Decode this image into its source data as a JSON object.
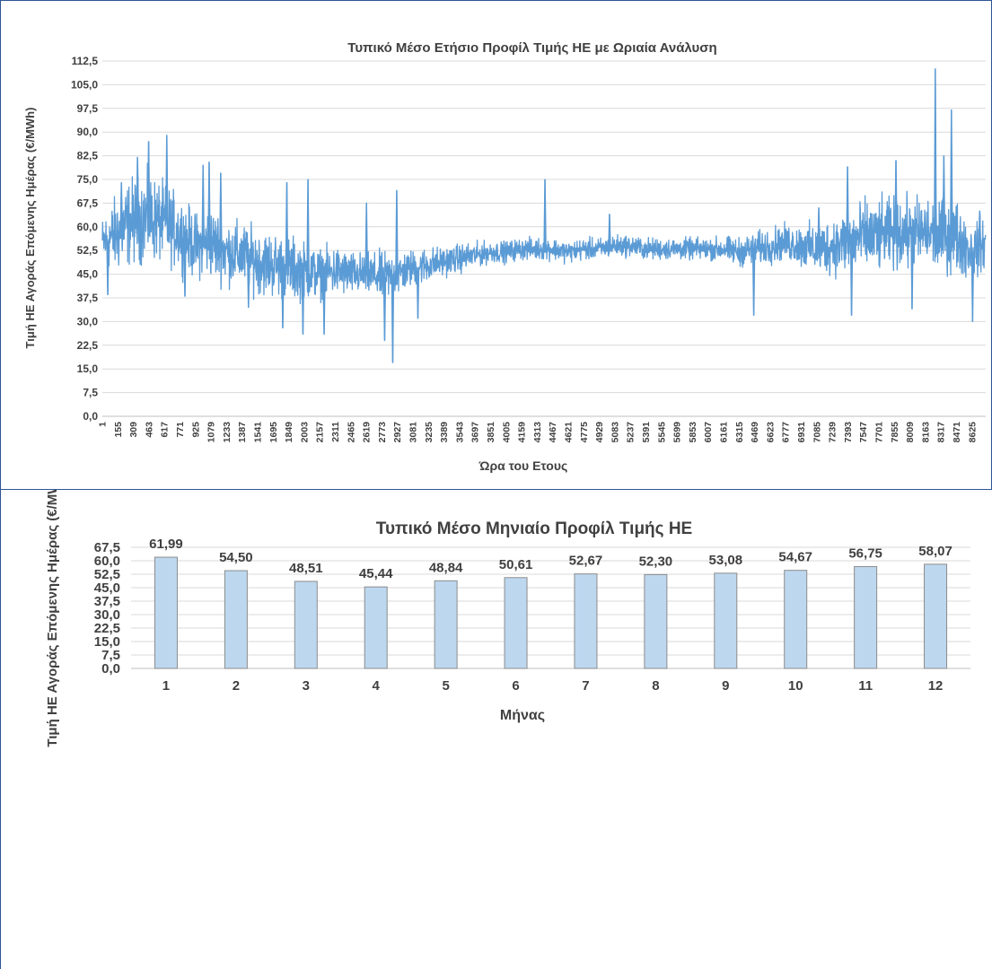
{
  "chart_data": [
    {
      "type": "line",
      "title": "Τυπικό Μέσο Ετήσιο Προφίλ Τιμής ΗΕ με Ωριαία Ανάλυση",
      "xlabel": "Ώρα του Ετους",
      "ylabel": "Τιμή ΗΕ Αγοράς Επόμενης Ημέρας (€/MWh)",
      "ylim": [
        0,
        112.5
      ],
      "ytick_step": 7.5,
      "ytick_labels": [
        "0,0",
        "7,5",
        "15,0",
        "22,5",
        "30,0",
        "37,5",
        "45,0",
        "52,5",
        "60,0",
        "67,5",
        "75,0",
        "82,5",
        "90,0",
        "97,5",
        "105,0",
        "112,5"
      ],
      "xlim": [
        1,
        8760
      ],
      "xtick_labels": [
        "1",
        "155",
        "309",
        "463",
        "617",
        "771",
        "925",
        "1079",
        "1233",
        "1387",
        "1541",
        "1695",
        "1849",
        "2003",
        "2157",
        "2311",
        "2465",
        "2619",
        "2773",
        "2927",
        "3081",
        "3235",
        "3389",
        "3543",
        "3697",
        "3851",
        "4005",
        "4159",
        "4313",
        "4467",
        "4621",
        "4775",
        "4929",
        "5083",
        "5237",
        "5391",
        "5545",
        "5699",
        "5853",
        "6007",
        "6161",
        "6315",
        "6469",
        "6623",
        "6777",
        "6931",
        "7085",
        "7239",
        "7393",
        "7547",
        "7701",
        "7855",
        "8009",
        "8163",
        "8317",
        "8471",
        "8625"
      ],
      "grid": true,
      "color": "#5b9bd5",
      "envelope": {
        "hour": [
          1,
          150,
          300,
          460,
          620,
          770,
          925,
          1080,
          1230,
          1390,
          1540,
          1700,
          1850,
          2000,
          2160,
          2310,
          2470,
          2620,
          2780,
          2930,
          3080,
          3240,
          3390,
          3540,
          3700,
          3850,
          4000,
          4160,
          4310,
          4470,
          4620,
          4780,
          4930,
          5080,
          5240,
          5390,
          5540,
          5700,
          5850,
          6000,
          6160,
          6310,
          6470,
          6620,
          6780,
          6930,
          7080,
          7240,
          7390,
          7550,
          7700,
          7860,
          8010,
          8160,
          8320,
          8470,
          8620,
          8760
        ],
        "mean": [
          55,
          58,
          62,
          63,
          61,
          58,
          54,
          55,
          52,
          51,
          49,
          48,
          47,
          46,
          45,
          46,
          45,
          45,
          44,
          45,
          47,
          48,
          49,
          50,
          51,
          52,
          52,
          53,
          53,
          53,
          52,
          53,
          53,
          54,
          54,
          53,
          53,
          53,
          53,
          53,
          53,
          52,
          53,
          54,
          55,
          54,
          53,
          54,
          55,
          57,
          57,
          58,
          58,
          58,
          57,
          57,
          52,
          55
        ],
        "spread": [
          7,
          11,
          12,
          12,
          11,
          10,
          9,
          10,
          9,
          9,
          9,
          9,
          9,
          8,
          7,
          7,
          6,
          6,
          7,
          6,
          5,
          5,
          4,
          4,
          3.5,
          3,
          3,
          3,
          3,
          3,
          3,
          3,
          3,
          3,
          3,
          3,
          3,
          3,
          3,
          3,
          3.5,
          4,
          4.5,
          5,
          5,
          6,
          7,
          8,
          9,
          10,
          10,
          10,
          10,
          10,
          10,
          10,
          8,
          7
        ]
      },
      "spikes": [
        {
          "hour": 55,
          "value": 38.5
        },
        {
          "hour": 190,
          "value": 74
        },
        {
          "hour": 350,
          "value": 82
        },
        {
          "hour": 460,
          "value": 87
        },
        {
          "hour": 640,
          "value": 89
        },
        {
          "hour": 820,
          "value": 38
        },
        {
          "hour": 1000,
          "value": 79.5
        },
        {
          "hour": 1060,
          "value": 80.5
        },
        {
          "hour": 1175,
          "value": 77
        },
        {
          "hour": 1450,
          "value": 34.5
        },
        {
          "hour": 1790,
          "value": 28
        },
        {
          "hour": 1830,
          "value": 74
        },
        {
          "hour": 1990,
          "value": 26
        },
        {
          "hour": 2040,
          "value": 75
        },
        {
          "hour": 2200,
          "value": 26
        },
        {
          "hour": 2620,
          "value": 67.5
        },
        {
          "hour": 2800,
          "value": 24
        },
        {
          "hour": 2880,
          "value": 17
        },
        {
          "hour": 2920,
          "value": 71.5
        },
        {
          "hour": 3130,
          "value": 31
        },
        {
          "hour": 4390,
          "value": 75
        },
        {
          "hour": 5030,
          "value": 64
        },
        {
          "hour": 6460,
          "value": 32
        },
        {
          "hour": 7105,
          "value": 66
        },
        {
          "hour": 7390,
          "value": 79
        },
        {
          "hour": 7430,
          "value": 32
        },
        {
          "hour": 7870,
          "value": 81
        },
        {
          "hour": 8030,
          "value": 34
        },
        {
          "hour": 8260,
          "value": 110
        },
        {
          "hour": 8345,
          "value": 82.5
        },
        {
          "hour": 8420,
          "value": 97
        },
        {
          "hour": 8630,
          "value": 30
        },
        {
          "hour": 8700,
          "value": 65
        }
      ]
    },
    {
      "type": "bar",
      "title": "Τυπικό Μέσο Μηνιαίο Προφίλ Τιμής ΗΕ",
      "xlabel": "Μήνας",
      "ylabel": "Τιμή ΗΕ Αγοράς Επόμενης Ημέρας (€/MWh)",
      "ylim": [
        0,
        67.5
      ],
      "ytick_step": 7.5,
      "ytick_labels": [
        "0,0",
        "7,5",
        "15,0",
        "22,5",
        "30,0",
        "37,5",
        "45,0",
        "52,5",
        "60,0",
        "67,5"
      ],
      "categories": [
        "1",
        "2",
        "3",
        "4",
        "5",
        "6",
        "7",
        "8",
        "9",
        "10",
        "11",
        "12"
      ],
      "values": [
        61.99,
        54.5,
        48.51,
        45.44,
        48.84,
        50.61,
        52.67,
        52.3,
        53.08,
        54.67,
        56.75,
        58.07
      ],
      "value_labels": [
        "61,99",
        "54,50",
        "48,51",
        "45,44",
        "48,84",
        "50,61",
        "52,67",
        "52,30",
        "53,08",
        "54,67",
        "56,75",
        "58,07"
      ],
      "grid": true,
      "bar_color": "#bdd7ee",
      "bar_edge": "#8c8c8c"
    }
  ]
}
